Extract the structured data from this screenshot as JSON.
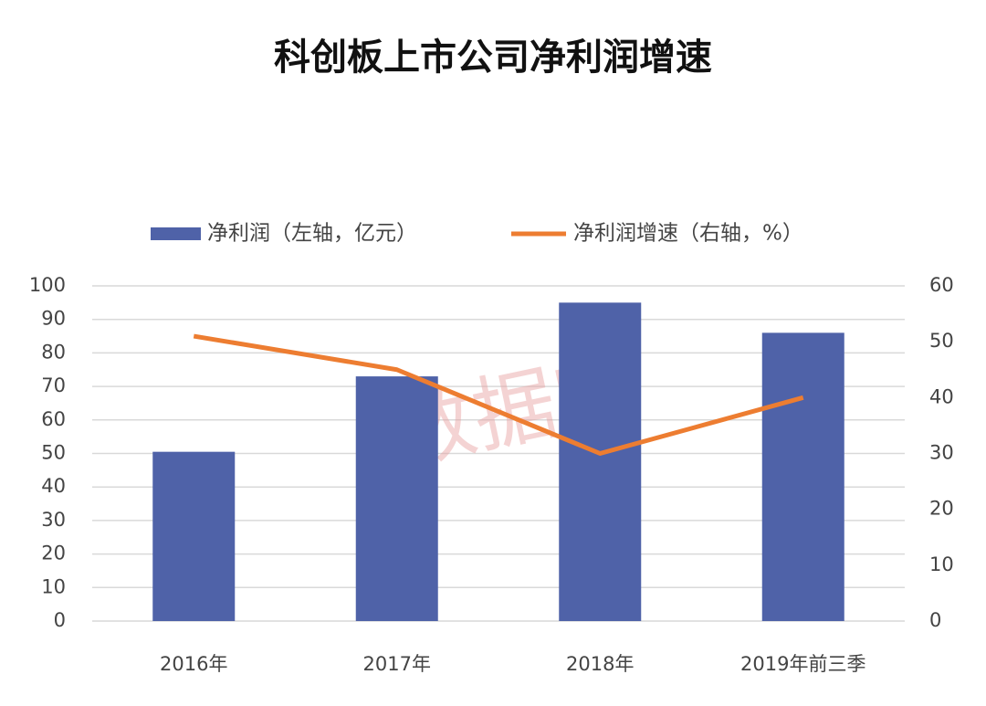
{
  "chart_data": {
    "type": "bar",
    "title": "科创板上市公司净利润增速",
    "categories": [
      "2016年",
      "2017年",
      "2018年",
      "2019年前三季"
    ],
    "series": [
      {
        "name": "净利润（左轴，亿元）",
        "type": "bar",
        "color": "#4f62a8",
        "values": [
          50.5,
          73,
          95,
          86
        ]
      },
      {
        "name": "净利润增速（右轴，%）",
        "type": "line",
        "axis": "y2",
        "color": "#ed7d31",
        "values": [
          51,
          45,
          30,
          40
        ]
      }
    ],
    "ylim": [
      0,
      100
    ],
    "yticks": [
      0,
      10,
      20,
      30,
      40,
      50,
      60,
      70,
      80,
      90,
      100
    ],
    "y2lim": [
      0,
      60
    ],
    "y2ticks": [
      0,
      10,
      20,
      30,
      40,
      50,
      60
    ],
    "grid": true,
    "legend": "top",
    "watermark": "数据宝"
  }
}
